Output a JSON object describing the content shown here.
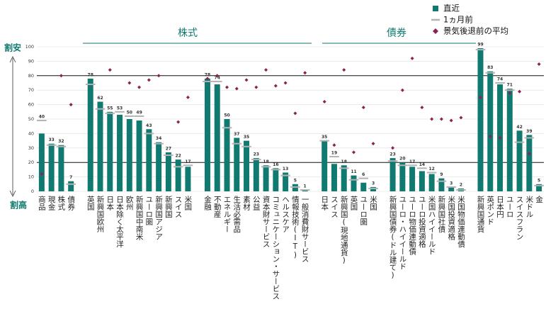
{
  "chart_data": {
    "type": "bar",
    "categories": [
      "商品",
      "現金",
      "株式",
      "債券",
      null,
      "英国",
      "新興国欧州",
      "日本",
      "日本除く太平洋",
      "欧州",
      "新興国中南米",
      "ユーロ圏",
      "新興国アジア",
      "新興国",
      "スイス",
      "米国",
      null,
      "金融",
      "不動産",
      "エネルギー",
      "生活必需品",
      "素材",
      "公益",
      "資本財サービス",
      "コミュニケーション・サービス",
      "ヘルスケア",
      "情報技術(IT)",
      "一般消費財サービス",
      null,
      "日本",
      "スイス",
      "新興国(現地通貨)",
      "英国",
      "ユーロ圏",
      "米国",
      null,
      "新興国債券(ドル建て)",
      "ユーロ・ハイイールド",
      "ユーロ物価連動債",
      "ユーロ投資適格",
      "米国ハイイールド",
      "新興国社債",
      "米国投資適格",
      "米国物価連動債",
      null,
      "新興国通貨",
      "英ポンド",
      "日本円",
      "ユーロ",
      "スイスフラン",
      "米ドル",
      "金"
    ],
    "series": [
      {
        "name": "直近",
        "color": "#107a70",
        "values": [
          40,
          33,
          32,
          7,
          null,
          78,
          62,
          55,
          53,
          50,
          49,
          43,
          34,
          27,
          22,
          17,
          null,
          78,
          74,
          50,
          37,
          35,
          23,
          18,
          16,
          13,
          5,
          1,
          null,
          35,
          19,
          18,
          11,
          6,
          3,
          null,
          23,
          20,
          17,
          14,
          12,
          9,
          3,
          2,
          null,
          99,
          83,
          74,
          71,
          42,
          39,
          5
        ]
      },
      {
        "name": "1ヵ月前",
        "color": "#b3b3b3",
        "values": [
          49,
          32,
          31,
          5,
          null,
          74,
          57,
          54,
          55,
          52,
          52,
          40,
          33,
          25,
          17,
          18,
          null,
          76,
          76,
          44,
          33,
          31,
          22,
          17,
          15,
          11,
          3,
          1,
          null,
          35,
          24,
          16,
          8,
          9,
          2,
          null,
          21,
          18,
          18,
          16,
          13,
          7,
          3,
          1,
          null,
          98,
          82,
          75,
          70,
          34,
          37,
          4
        ]
      },
      {
        "name": "景気後退前の平均",
        "color": "#8b2252",
        "values": [
          12,
          null,
          80,
          60,
          null,
          null,
          null,
          84,
          null,
          75,
          72,
          77,
          80,
          null,
          48,
          65,
          null,
          78,
          80,
          72,
          71,
          77,
          72,
          84,
          73,
          75,
          54,
          82,
          null,
          62,
          32,
          84,
          27,
          58,
          33,
          null,
          30,
          70,
          92,
          58,
          50,
          50,
          49,
          51,
          null,
          65,
          38,
          37,
          68,
          69,
          26,
          88
        ]
      }
    ],
    "ylim": [
      0,
      100
    ],
    "yticks": [
      0,
      10,
      20,
      30,
      40,
      50,
      60,
      70,
      80,
      90,
      100
    ],
    "reference_lines": [
      20,
      80
    ],
    "grid": true,
    "group_labels": [
      "株式",
      "債券"
    ],
    "annotations": [
      "割安",
      "割高"
    ]
  }
}
